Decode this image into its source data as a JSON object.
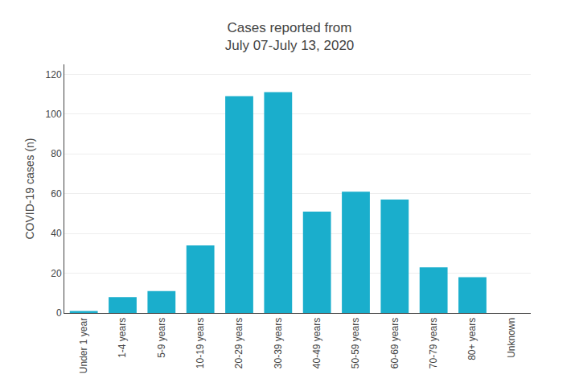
{
  "chart_data": {
    "type": "bar",
    "title": "Cases reported from\nJuly 07-July 13, 2020",
    "ylabel": "COVID-19 cases (n)",
    "categories": [
      "Under 1 year",
      "1-4 years",
      "5-9 years",
      "10-19 years",
      "20-29 years",
      "30-39 years",
      "40-49 years",
      "50-59 years",
      "60-69 years",
      "70-79 years",
      "80+ years",
      "Unknown"
    ],
    "values": [
      1,
      8,
      11,
      34,
      109,
      111,
      51,
      61,
      57,
      23,
      18,
      0
    ],
    "color": "#1AAECC",
    "ylim": [
      0,
      125
    ],
    "yticks": [
      0,
      20,
      40,
      60,
      80,
      100,
      120
    ],
    "grid": true
  }
}
